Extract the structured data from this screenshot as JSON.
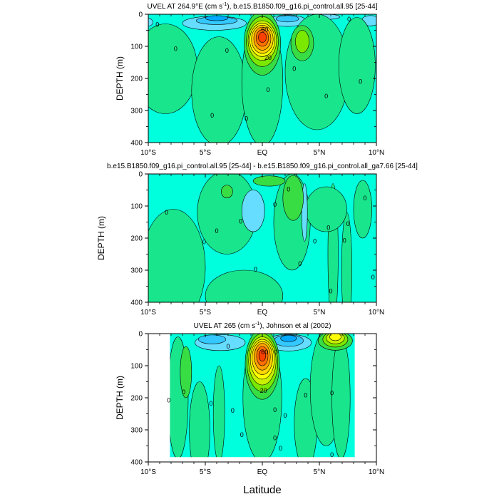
{
  "figure": {
    "xlabel": "Latitude"
  },
  "colors": {
    "c_neg3": "#00a8ff",
    "c_neg2": "#33c8ff",
    "c_neg1": "#66ddff",
    "c0": "#00ffdd",
    "c1": "#19e68c",
    "c2": "#38dd44",
    "c3": "#7be800",
    "c4": "#c8f000",
    "c5": "#ffff00",
    "c6": "#ffd400",
    "c7": "#ffa000",
    "c8": "#ff7000",
    "c9": "#ff4000",
    "line": "#000000",
    "missing": "#ffffff"
  },
  "chart_data": [
    {
      "type": "contour",
      "title": "UVEL AT 264.9°E (cm s⁻¹), b.e15.B1850.f09_g16.pi_control.all.95 [25-44]",
      "title_main": "UVEL AT 264.9°E (cm s",
      "title_sup": "-1",
      "title_rest": "), b.e15.B1850.f09_g16.pi_control.all.95 [25-44]",
      "xlim": [
        -10,
        10
      ],
      "ylim": [
        400,
        0
      ],
      "ylabel": "DEPTH (m)",
      "x_ticks": [
        -10,
        -5,
        0,
        5,
        10
      ],
      "x_tick_labels": [
        "10°S",
        "5°S",
        "EQ",
        "5°N",
        "10°N"
      ],
      "y_ticks": [
        0,
        100,
        200,
        300,
        400
      ],
      "y_tick_labels": [
        "0",
        "100",
        "200",
        "300",
        "400"
      ],
      "features": [
        {
          "level": -1,
          "x": -10,
          "y": 25,
          "rx": 0.4,
          "ry": 12
        },
        {
          "level": -1,
          "x": -4.2,
          "y": 28,
          "rx": 2.8,
          "ry": 22
        },
        {
          "level": -2,
          "x": -4.0,
          "y": 20,
          "rx": 1.8,
          "ry": 12
        },
        {
          "level": -3,
          "x": -4.0,
          "y": 12,
          "rx": 1.0,
          "ry": 8
        },
        {
          "level": -1,
          "x": 2.2,
          "y": 20,
          "rx": 1.6,
          "ry": 18
        },
        {
          "level": -2,
          "x": 2.2,
          "y": 14,
          "rx": 1.0,
          "ry": 10
        },
        {
          "level": -1,
          "x": 5.6,
          "y": 8,
          "rx": 1.2,
          "ry": 8
        },
        {
          "level": -1,
          "x": 9.5,
          "y": 20,
          "rx": 0.8,
          "ry": 16
        },
        {
          "level": 1,
          "x": -8.5,
          "y": 170,
          "rx": 2.8,
          "ry": 140
        },
        {
          "level": 1,
          "x": -3.8,
          "y": 240,
          "rx": 2.4,
          "ry": 170
        },
        {
          "level": 1,
          "x": 0.0,
          "y": 210,
          "rx": 1.8,
          "ry": 200
        },
        {
          "level": 1,
          "x": 4.8,
          "y": 180,
          "rx": 2.8,
          "ry": 180
        },
        {
          "level": 1,
          "x": 8.3,
          "y": 160,
          "rx": 1.6,
          "ry": 150
        },
        {
          "level": 2,
          "x": 3.5,
          "y": 90,
          "rx": 1.0,
          "ry": 55
        },
        {
          "level": 3,
          "x": 3.5,
          "y": 85,
          "rx": 0.6,
          "ry": 35
        },
        {
          "level": 2,
          "x": 0.0,
          "y": 90,
          "rx": 1.6,
          "ry": 100
        },
        {
          "level": 3,
          "x": 0.0,
          "y": 85,
          "rx": 1.4,
          "ry": 78
        },
        {
          "level": 4,
          "x": 0.0,
          "y": 82,
          "rx": 1.25,
          "ry": 62
        },
        {
          "level": 5,
          "x": 0.0,
          "y": 80,
          "rx": 1.1,
          "ry": 52
        },
        {
          "level": 6,
          "x": 0.0,
          "y": 78,
          "rx": 0.95,
          "ry": 44
        },
        {
          "level": 7,
          "x": 0.0,
          "y": 76,
          "rx": 0.75,
          "ry": 36
        },
        {
          "level": 8,
          "x": 0.0,
          "y": 74,
          "rx": 0.55,
          "ry": 26
        },
        {
          "level": 9,
          "x": 0.0,
          "y": 72,
          "rx": 0.35,
          "ry": 16
        }
      ],
      "labels": [
        {
          "text": "0",
          "x": -9.2,
          "y": 32
        },
        {
          "text": "0",
          "x": -7.6,
          "y": 108
        },
        {
          "text": "0",
          "x": -3.1,
          "y": 113
        },
        {
          "text": "0",
          "x": -4.4,
          "y": 315
        },
        {
          "text": "0",
          "x": -1.4,
          "y": 325
        },
        {
          "text": "0",
          "x": 0.5,
          "y": 235
        },
        {
          "text": "0",
          "x": 2.8,
          "y": 170
        },
        {
          "text": "0",
          "x": 5.6,
          "y": 255
        },
        {
          "text": "0",
          "x": 8.6,
          "y": 210
        },
        {
          "text": "0",
          "x": 7.6,
          "y": 15
        },
        {
          "text": "60",
          "x": 0.2,
          "y": 48
        },
        {
          "text": "20",
          "x": 0.5,
          "y": 135
        }
      ],
      "missing": []
    },
    {
      "type": "contour",
      "title": "b.e15.B1850.f09_g16.pi_control.all.95 [25-44] - b.e15.B1850.f09_g16.pi_control.all_ga7.66 [25-44]",
      "title_main": "b.e15.B1850.f09_g16.pi_control.all.95 [25-44] - b.e15.B1850.f09_g16.pi_control.all_ga7.66 [25-44]",
      "title_sup": "",
      "title_rest": "",
      "xlim": [
        -10,
        10
      ],
      "ylim": [
        400,
        0
      ],
      "ylabel": "DEPTH (m)",
      "x_ticks": [
        -10,
        -5,
        0,
        5,
        10
      ],
      "x_tick_labels": [
        "10°S",
        "5°S",
        "EQ",
        "5°N",
        "10°N"
      ],
      "y_ticks": [
        0,
        100,
        200,
        300,
        400
      ],
      "y_tick_labels": [
        "0",
        "100",
        "200",
        "300",
        "400"
      ],
      "features": [
        {
          "level": 1,
          "x": -7.8,
          "y": 290,
          "rx": 2.8,
          "ry": 180
        },
        {
          "level": 1,
          "x": -3.1,
          "y": 120,
          "rx": 2.6,
          "ry": 130
        },
        {
          "level": 1,
          "x": -1.6,
          "y": 380,
          "rx": 3.4,
          "ry": 80
        },
        {
          "level": 1,
          "x": 2.6,
          "y": 150,
          "rx": 1.6,
          "ry": 150
        },
        {
          "level": 1,
          "x": 6.2,
          "y": 250,
          "rx": 0.45,
          "ry": 220
        },
        {
          "level": 1,
          "x": 7.4,
          "y": 300,
          "rx": 0.45,
          "ry": 180
        },
        {
          "level": 1,
          "x": 8.8,
          "y": 110,
          "rx": 0.8,
          "ry": 90
        },
        {
          "level": 1,
          "x": 5.6,
          "y": 110,
          "rx": 1.8,
          "ry": 70
        },
        {
          "level": 2,
          "x": 2.7,
          "y": 75,
          "rx": 0.9,
          "ry": 70
        },
        {
          "level": 2,
          "x": 0.6,
          "y": 22,
          "rx": 1.4,
          "ry": 16
        },
        {
          "level": 2,
          "x": -3.1,
          "y": 55,
          "rx": 0.5,
          "ry": 20
        },
        {
          "level": -1,
          "x": -0.8,
          "y": 115,
          "rx": 1.0,
          "ry": 65
        },
        {
          "level": -1,
          "x": 3.7,
          "y": 120,
          "rx": 0.25,
          "ry": 90
        }
      ],
      "labels": [
        {
          "text": "0",
          "x": -8.4,
          "y": 120
        },
        {
          "text": "0",
          "x": -5.1,
          "y": 212
        },
        {
          "text": "0",
          "x": -4.0,
          "y": 178
        },
        {
          "text": "0",
          "x": -1.9,
          "y": 148
        },
        {
          "text": "0",
          "x": 1.1,
          "y": 95
        },
        {
          "text": "0",
          "x": 2.3,
          "y": 48
        },
        {
          "text": "0",
          "x": -0.6,
          "y": 298
        },
        {
          "text": "0",
          "x": 4.6,
          "y": 210
        },
        {
          "text": "0",
          "x": 3.3,
          "y": 280
        },
        {
          "text": "0",
          "x": 5.8,
          "y": 168
        },
        {
          "text": "0",
          "x": 6.0,
          "y": 365
        },
        {
          "text": "0",
          "x": 7.5,
          "y": 155
        },
        {
          "text": "0",
          "x": 7.2,
          "y": 208
        },
        {
          "text": "0",
          "x": 9.0,
          "y": 75
        },
        {
          "text": "0",
          "x": 9.7,
          "y": 322
        }
      ],
      "missing": []
    },
    {
      "type": "contour",
      "title": "UVEL AT 265 (cm s⁻¹), Johnson et al (2002)",
      "title_main": "UVEL AT 265 (cm s",
      "title_sup": "-1",
      "title_rest": "), Johnson et al (2002)",
      "xlim": [
        -10,
        10
      ],
      "ylim": [
        400,
        0
      ],
      "ylabel": "DEPTH (m)",
      "x_ticks": [
        -10,
        -5,
        0,
        5,
        10
      ],
      "x_tick_labels": [
        "10°S",
        "5°S",
        "EQ",
        "5°N",
        "10°N"
      ],
      "y_ticks": [
        0,
        100,
        200,
        300,
        400
      ],
      "y_tick_labels": [
        "0",
        "100",
        "200",
        "300",
        "400"
      ],
      "features": [
        {
          "level": 1,
          "x": -7.4,
          "y": 200,
          "rx": 0.9,
          "ry": 190
        },
        {
          "level": 1,
          "x": -5.5,
          "y": 300,
          "rx": 0.9,
          "ry": 150
        },
        {
          "level": 1,
          "x": -3.8,
          "y": 250,
          "rx": 0.5,
          "ry": 150
        },
        {
          "level": 1,
          "x": 0.0,
          "y": 200,
          "rx": 1.7,
          "ry": 200
        },
        {
          "level": 1,
          "x": 3.8,
          "y": 280,
          "rx": 1.0,
          "ry": 140
        },
        {
          "level": 1,
          "x": 5.6,
          "y": 170,
          "rx": 1.4,
          "ry": 180
        },
        {
          "level": 1,
          "x": 6.9,
          "y": 200,
          "rx": 0.8,
          "ry": 190
        },
        {
          "level": 2,
          "x": -6.7,
          "y": 120,
          "rx": 0.5,
          "ry": 80
        },
        {
          "level": -1,
          "x": -3.7,
          "y": 28,
          "rx": 2.2,
          "ry": 25
        },
        {
          "level": -2,
          "x": -4.4,
          "y": 18,
          "rx": 1.2,
          "ry": 14
        },
        {
          "level": -1,
          "x": 2.3,
          "y": 28,
          "rx": 2.0,
          "ry": 26
        },
        {
          "level": -2,
          "x": 2.3,
          "y": 22,
          "rx": 1.3,
          "ry": 18
        },
        {
          "level": -3,
          "x": 2.3,
          "y": 15,
          "rx": 0.7,
          "ry": 10
        },
        {
          "level": 2,
          "x": 6.4,
          "y": 22,
          "rx": 1.5,
          "ry": 30
        },
        {
          "level": 3,
          "x": 6.4,
          "y": 18,
          "rx": 1.1,
          "ry": 24
        },
        {
          "level": 4,
          "x": 6.4,
          "y": 14,
          "rx": 0.8,
          "ry": 18
        },
        {
          "level": 5,
          "x": 6.4,
          "y": 10,
          "rx": 0.5,
          "ry": 12
        },
        {
          "level": 2,
          "x": 0.0,
          "y": 95,
          "rx": 1.5,
          "ry": 110
        },
        {
          "level": 3,
          "x": 0.0,
          "y": 90,
          "rx": 1.35,
          "ry": 90
        },
        {
          "level": 4,
          "x": 0.0,
          "y": 85,
          "rx": 1.2,
          "ry": 75
        },
        {
          "level": 5,
          "x": 0.0,
          "y": 80,
          "rx": 1.05,
          "ry": 62
        },
        {
          "level": 6,
          "x": 0.0,
          "y": 76,
          "rx": 0.9,
          "ry": 52
        },
        {
          "level": 7,
          "x": 0.0,
          "y": 72,
          "rx": 0.7,
          "ry": 42
        },
        {
          "level": 8,
          "x": 0.0,
          "y": 70,
          "rx": 0.5,
          "ry": 30
        },
        {
          "level": 9,
          "x": 0.0,
          "y": 68,
          "rx": 0.3,
          "ry": 18
        }
      ],
      "labels": [
        {
          "text": "60",
          "x": 0.2,
          "y": 58
        },
        {
          "text": "20",
          "x": 0.1,
          "y": 178
        },
        {
          "text": "0",
          "x": -6.9,
          "y": 182
        },
        {
          "text": "0",
          "x": -8.2,
          "y": 208
        },
        {
          "text": "0",
          "x": -4.5,
          "y": 218
        },
        {
          "text": "0",
          "x": -2.6,
          "y": 240
        },
        {
          "text": "0",
          "x": 1.1,
          "y": 238
        },
        {
          "text": "0",
          "x": 2.0,
          "y": 255
        },
        {
          "text": "0",
          "x": 3.8,
          "y": 192
        },
        {
          "text": "0",
          "x": 6.1,
          "y": 185
        },
        {
          "text": "0",
          "x": -1.8,
          "y": 315
        },
        {
          "text": "0",
          "x": 1.1,
          "y": 325
        },
        {
          "text": "0",
          "x": 1.6,
          "y": 358
        },
        {
          "text": "0",
          "x": 6.1,
          "y": 378
        },
        {
          "text": "0",
          "x": -3.0,
          "y": 40
        },
        {
          "text": "0",
          "x": 1.2,
          "y": 58
        }
      ],
      "missing": [
        {
          "x0": -10,
          "x1": -8.1,
          "y0": 0,
          "y1": 400
        },
        {
          "x0": 8.1,
          "x1": 10,
          "y0": 0,
          "y1": 400
        },
        {
          "x0": -8.1,
          "x1": 8.1,
          "y0": 385,
          "y1": 400
        }
      ]
    }
  ]
}
